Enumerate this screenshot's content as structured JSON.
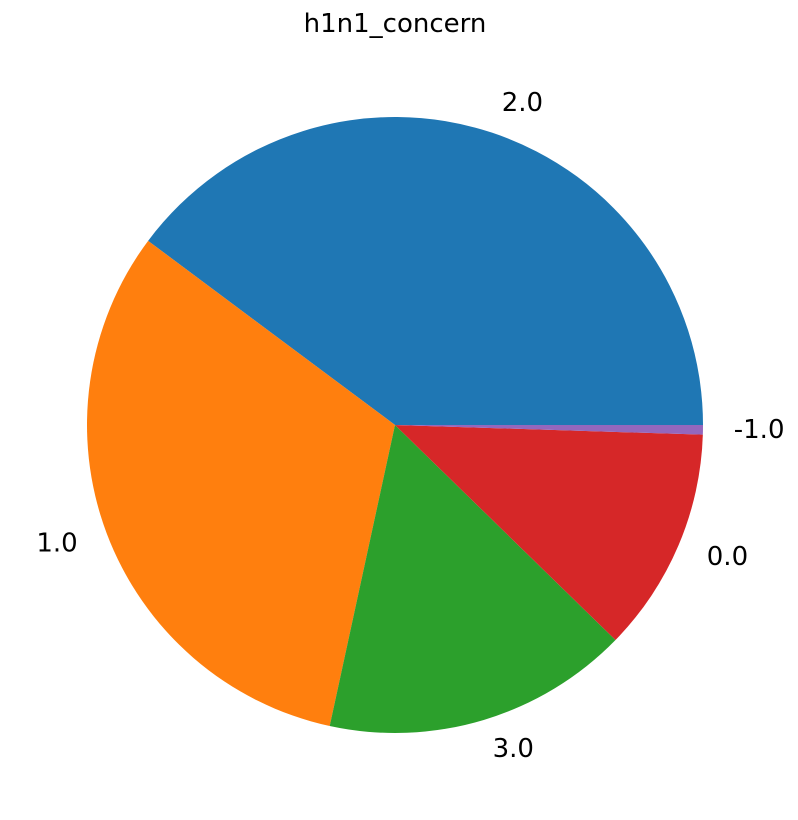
{
  "chart_data": {
    "type": "pie",
    "title": "h1n1_concern",
    "categories": [
      "2.0",
      "1.0",
      "3.0",
      "0.0",
      "-1.0"
    ],
    "values": [
      39.8,
      31.8,
      16.1,
      11.8,
      0.5
    ],
    "colors": [
      "#1f77b4",
      "#ff7f0e",
      "#2ca02c",
      "#d62728",
      "#9467bd"
    ],
    "start_angle_deg": 0,
    "direction": "counterclockwise",
    "legend": "none"
  }
}
